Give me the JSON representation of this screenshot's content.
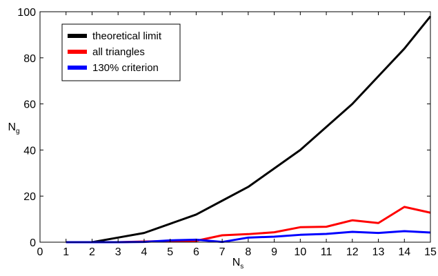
{
  "chart_data": {
    "type": "line",
    "x": [
      1,
      2,
      3,
      4,
      5,
      6,
      7,
      8,
      9,
      10,
      11,
      12,
      13,
      14,
      15
    ],
    "xlim": [
      0,
      15
    ],
    "ylim": [
      0,
      100
    ],
    "xticks": [
      "0",
      "1",
      "2",
      "3",
      "4",
      "5",
      "6",
      "7",
      "8",
      "9",
      "10",
      "11",
      "12",
      "13",
      "14",
      "15"
    ],
    "yticks": [
      "0",
      "20",
      "40",
      "60",
      "80",
      "100"
    ],
    "xlabel": {
      "main": "N",
      "sub": "s"
    },
    "ylabel": {
      "main": "N",
      "sub": "g"
    },
    "grid": false,
    "legend_position": "top-left",
    "series": [
      {
        "name": "theoretical limit",
        "color": "#000000",
        "values": [
          0,
          0,
          2,
          4,
          8,
          12,
          18,
          24,
          32,
          40,
          50,
          60,
          72,
          84,
          98
        ]
      },
      {
        "name": "all triangles",
        "color": "#ff0000",
        "values": [
          0,
          0,
          0,
          0.3,
          0.5,
          0.6,
          3,
          3.5,
          4.3,
          6.5,
          6.7,
          9.5,
          8.3,
          15.3,
          12.8
        ]
      },
      {
        "name": "130% criterion",
        "color": "#0000ff",
        "values": [
          0,
          0,
          0,
          0.1,
          0.8,
          1.1,
          0.1,
          2,
          2.4,
          3.2,
          3.6,
          4.5,
          4,
          4.8,
          4.2
        ]
      }
    ]
  }
}
